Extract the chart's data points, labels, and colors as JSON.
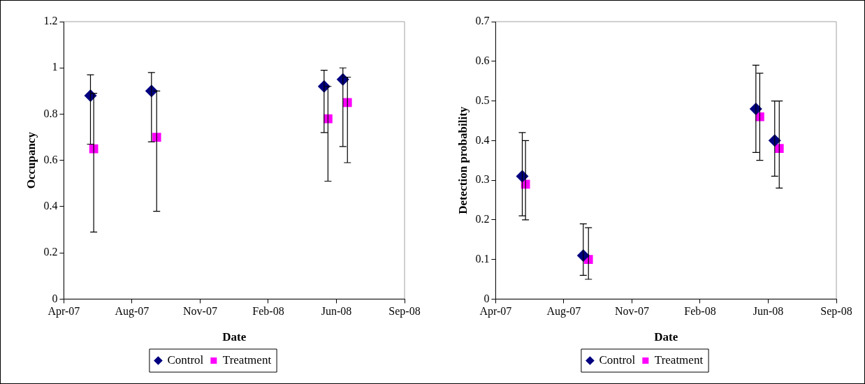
{
  "chart_data": [
    {
      "type": "scatter",
      "xlabel": "Date",
      "ylabel": "Occupancy",
      "xlim": [
        "2007-04-20",
        "2008-09-26"
      ],
      "xticks": [
        {
          "value": "2007-04-20",
          "label": "Apr-07"
        },
        {
          "value": "2007-08-03",
          "label": "Aug-07"
        },
        {
          "value": "2007-11-16",
          "label": "Nov-07"
        },
        {
          "value": "2008-02-29",
          "label": "Feb-08"
        },
        {
          "value": "2008-06-13",
          "label": "Jun-08"
        },
        {
          "value": "2008-09-26",
          "label": "Sep-08"
        }
      ],
      "ylim": [
        0,
        1.2
      ],
      "yticks": [
        0,
        0.2,
        0.4,
        0.6,
        0.8,
        1,
        1.2
      ],
      "grid": false,
      "legend": "bottom",
      "series": [
        {
          "name": "Control",
          "color": "#000080",
          "marker": "diamond",
          "x": [
            "2007-05-31",
            "2007-09-02",
            "2008-05-25",
            "2008-06-23"
          ],
          "values": [
            0.88,
            0.9,
            0.92,
            0.95
          ],
          "errors": [
            [
              0.67,
              0.97
            ],
            [
              0.68,
              0.98
            ],
            [
              0.72,
              0.99
            ],
            [
              0.66,
              1.0
            ]
          ]
        },
        {
          "name": "Treatment",
          "color": "#ff00ff",
          "marker": "square",
          "x": [
            "2007-06-05",
            "2007-09-10",
            "2008-05-31",
            "2008-06-30"
          ],
          "values": [
            0.65,
            0.7,
            0.78,
            0.85
          ],
          "errors": [
            [
              0.29,
              0.89
            ],
            [
              0.38,
              0.9
            ],
            [
              0.51,
              0.92
            ],
            [
              0.59,
              0.96
            ]
          ]
        }
      ]
    },
    {
      "type": "scatter",
      "xlabel": "Date",
      "ylabel": "Detection probability",
      "xlim": [
        "2007-04-20",
        "2008-09-26"
      ],
      "xticks": [
        {
          "value": "2007-04-20",
          "label": "Apr-07"
        },
        {
          "value": "2007-08-03",
          "label": "Aug-07"
        },
        {
          "value": "2007-11-16",
          "label": "Nov-07"
        },
        {
          "value": "2008-02-29",
          "label": "Feb-08"
        },
        {
          "value": "2008-06-13",
          "label": "Jun-08"
        },
        {
          "value": "2008-09-26",
          "label": "Sep-08"
        }
      ],
      "ylim": [
        0,
        0.7
      ],
      "yticks": [
        0,
        0.1,
        0.2,
        0.3,
        0.4,
        0.5,
        0.6,
        0.7
      ],
      "grid": false,
      "legend": "bottom",
      "series": [
        {
          "name": "Control",
          "color": "#000080",
          "marker": "diamond",
          "x": [
            "2007-05-31",
            "2007-09-02",
            "2008-05-25",
            "2008-06-23"
          ],
          "values": [
            0.31,
            0.11,
            0.48,
            0.4
          ],
          "errors": [
            [
              0.21,
              0.42
            ],
            [
              0.06,
              0.19
            ],
            [
              0.37,
              0.59
            ],
            [
              0.31,
              0.5
            ]
          ]
        },
        {
          "name": "Treatment",
          "color": "#ff00ff",
          "marker": "square",
          "x": [
            "2007-06-05",
            "2007-09-10",
            "2008-05-31",
            "2008-06-30"
          ],
          "values": [
            0.29,
            0.1,
            0.46,
            0.38
          ],
          "errors": [
            [
              0.2,
              0.4
            ],
            [
              0.05,
              0.18
            ],
            [
              0.35,
              0.57
            ],
            [
              0.28,
              0.5
            ]
          ]
        }
      ]
    }
  ]
}
